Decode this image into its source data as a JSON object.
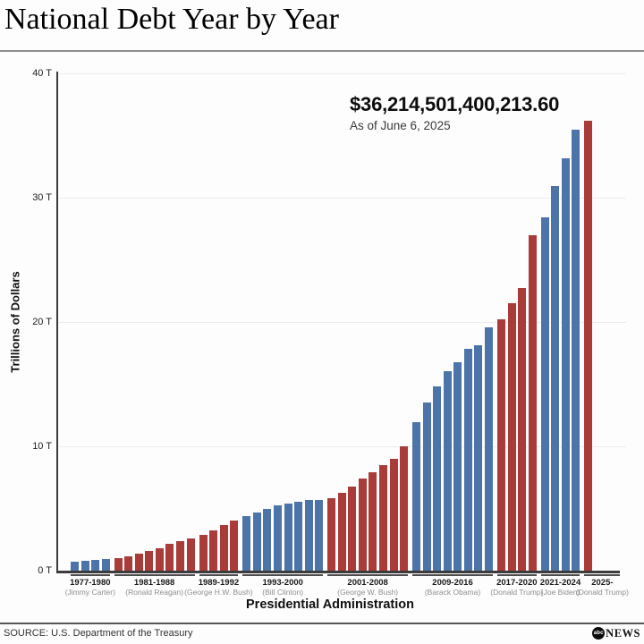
{
  "header": {
    "title": "National Debt Year by Year"
  },
  "annotation": {
    "value": "$36,214,501,400,213.60",
    "date": "As of June 6, 2025"
  },
  "footer": {
    "source": "SOURCE: U.S. Department of the Treasury",
    "logo_abc": "abc",
    "logo_news": "NEWS"
  },
  "colors": {
    "democrat_bar": "#4d74a8",
    "republican_bar": "#a93b39",
    "grid_line": "#ececec",
    "axis_line": "#3c3c3c"
  },
  "chart_data": {
    "type": "bar",
    "title": "National Debt Year by Year",
    "xlabel": "Presidential Administration",
    "ylabel": "Trillions of Dollars",
    "ylim": [
      0,
      40
    ],
    "yticks": [
      0,
      10,
      20,
      30,
      40
    ],
    "ytick_labels": [
      "0 T",
      "10 T",
      "20 T",
      "30 T",
      "40 T"
    ],
    "grid": true,
    "unit": "trillions of US dollars",
    "legend": "bar color indicates party of sitting president (blue = Democratic, red = Republican)",
    "groups": [
      {
        "years_label": "1977-1980",
        "president_label": "(Jimmy Carter)",
        "party": "Democratic",
        "x": [
          1977,
          1978,
          1979,
          1980
        ],
        "values": [
          0.7,
          0.77,
          0.83,
          0.91
        ]
      },
      {
        "years_label": "1981-1988",
        "president_label": "(Ronald Reagan)",
        "party": "Republican",
        "x": [
          1981,
          1982,
          1983,
          1984,
          1985,
          1986,
          1987,
          1988
        ],
        "values": [
          1.0,
          1.14,
          1.38,
          1.57,
          1.82,
          2.13,
          2.35,
          2.6
        ]
      },
      {
        "years_label": "1989-1992",
        "president_label": "(George H.W. Bush)",
        "party": "Republican",
        "x": [
          1989,
          1990,
          1991,
          1992
        ],
        "values": [
          2.86,
          3.23,
          3.67,
          4.06
        ]
      },
      {
        "years_label": "1993-2000",
        "president_label": "(Bill Clinton)",
        "party": "Democratic",
        "x": [
          1993,
          1994,
          1995,
          1996,
          1997,
          1998,
          1999,
          2000
        ],
        "values": [
          4.41,
          4.69,
          4.97,
          5.22,
          5.41,
          5.53,
          5.66,
          5.67
        ]
      },
      {
        "years_label": "2001-2008",
        "president_label": "(George W. Bush)",
        "party": "Republican",
        "x": [
          2001,
          2002,
          2003,
          2004,
          2005,
          2006,
          2007,
          2008
        ],
        "values": [
          5.81,
          6.23,
          6.78,
          7.38,
          7.93,
          8.51,
          9.01,
          10.02
        ]
      },
      {
        "years_label": "2009-2016",
        "president_label": "(Barack Obama)",
        "party": "Democratic",
        "x": [
          2009,
          2010,
          2011,
          2012,
          2013,
          2014,
          2015,
          2016
        ],
        "values": [
          11.91,
          13.56,
          14.79,
          16.07,
          16.74,
          17.82,
          18.15,
          19.57
        ]
      },
      {
        "years_label": "2017-2020",
        "president_label": "(Donald Trump)",
        "party": "Republican",
        "x": [
          2017,
          2018,
          2019,
          2020
        ],
        "values": [
          20.24,
          21.52,
          22.72,
          26.95
        ]
      },
      {
        "years_label": "2021-2024",
        "president_label": "(Joe Biden)",
        "party": "Democratic",
        "x": [
          2021,
          2022,
          2023,
          2024
        ],
        "values": [
          28.43,
          30.93,
          33.17,
          35.46
        ]
      },
      {
        "years_label": "2025-",
        "president_label": "(Donald Trump)",
        "party": "Republican",
        "x": [
          2025
        ],
        "values": [
          36.21
        ]
      }
    ]
  }
}
